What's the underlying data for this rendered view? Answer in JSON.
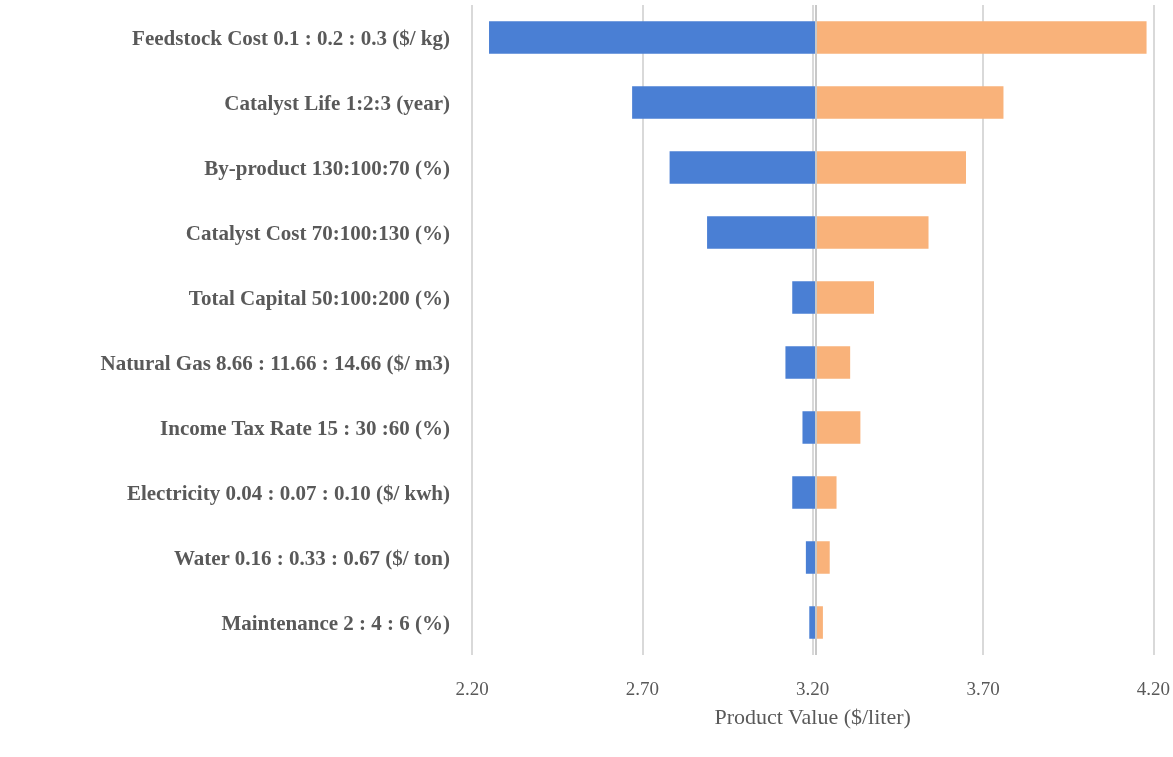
{
  "chart_data": {
    "type": "bar",
    "orientation": "horizontal",
    "xlabel": "Product Value ($/liter)",
    "categories": [
      "Feedstock Cost 0.1 : 0.2 : 0.3 ($/ kg)",
      "Catalyst Life 1:2:3 (year)",
      "By-product 130:100:70 (%)",
      "Catalyst Cost 70:100:130 (%)",
      "Total Capital 50:100:200 (%)",
      "Natural Gas 8.66 : 11.66 : 14.66 ($/ m3)",
      "Income Tax Rate 15 : 30 :60 (%)",
      "Electricity 0.04 : 0.07 : 0.10 ($/ kwh)",
      "Water 0.16 : 0.33 : 0.67 ($/ ton)",
      "Maintenance 2 : 4 : 6 (%)"
    ],
    "series": [
      {
        "color": "#4a7fd4",
        "base": [
          2.25,
          2.67,
          2.78,
          2.89,
          3.14,
          3.12,
          3.17,
          3.14,
          3.18,
          3.19
        ],
        "values": [
          0.96,
          0.54,
          0.43,
          0.32,
          0.07,
          0.09,
          0.04,
          0.07,
          0.03,
          0.02
        ]
      },
      {
        "color": "#f9b27a",
        "base": [
          3.21,
          3.21,
          3.21,
          3.21,
          3.21,
          3.21,
          3.21,
          3.21,
          3.21,
          3.21
        ],
        "values": [
          0.97,
          0.55,
          0.44,
          0.33,
          0.17,
          0.1,
          0.13,
          0.06,
          0.04,
          0.02
        ]
      }
    ],
    "xlim": [
      2.2,
      4.2
    ],
    "xticks": [
      {
        "value": 2.2,
        "label": "2.20"
      },
      {
        "value": 2.7,
        "label": "2.70"
      },
      {
        "value": 3.2,
        "label": "3.20"
      },
      {
        "value": 3.7,
        "label": "3.70"
      },
      {
        "value": 4.2,
        "label": "4.20"
      }
    ],
    "grid": "x",
    "ref_lines": [
      {
        "axis": "x",
        "value": 3.21,
        "color": "#c8c8c8"
      }
    ]
  }
}
